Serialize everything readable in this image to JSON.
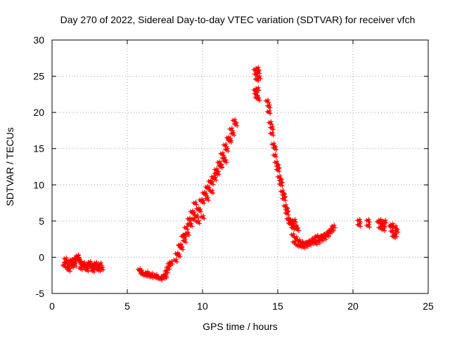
{
  "chart_data": {
    "type": "scatter",
    "title": "Day 270 of 2022, Sidereal Day-to-day VTEC variation (SDTVAR) for receiver vfch",
    "xlabel": "GPS time / hours",
    "ylabel": "SDTVAR / TECUs",
    "xlim": [
      0,
      25
    ],
    "ylim": [
      -5,
      30
    ],
    "xticks": [
      0,
      5,
      10,
      15,
      20,
      25
    ],
    "yticks": [
      -5,
      0,
      5,
      10,
      15,
      20,
      25,
      30
    ],
    "xtick_labels": [
      "0",
      "5",
      "10",
      "15",
      "20",
      "25"
    ],
    "ytick_labels": [
      "-5",
      "0",
      "5",
      "10",
      "15",
      "20",
      "25",
      "30"
    ],
    "grid": true,
    "marker": "+",
    "color": "#ff0000",
    "series": [
      {
        "name": "SDTVAR",
        "x": [
          0.8,
          0.9,
          1.0,
          1.1,
          1.2,
          1.3,
          1.4,
          1.5,
          1.6,
          1.7,
          1.8,
          1.9,
          2.0,
          2.1,
          2.2,
          2.3,
          2.4,
          2.5,
          2.6,
          2.7,
          2.8,
          2.9,
          3.0,
          3.1,
          3.2,
          3.3,
          0.9,
          1.1,
          1.3,
          1.5,
          1.7,
          1.9,
          2.1,
          2.3,
          2.5,
          2.7,
          2.9,
          3.1,
          5.8,
          5.9,
          6.0,
          6.2,
          6.4,
          6.6,
          6.8,
          7.0,
          7.2,
          7.4,
          7.5,
          7.6,
          7.7,
          7.8,
          7.9,
          6.0,
          6.3,
          6.6,
          6.9,
          7.2,
          7.5,
          8.2,
          8.4,
          8.6,
          8.8,
          9.0,
          9.2,
          9.4,
          9.6,
          9.8,
          10.0,
          10.2,
          10.4,
          10.6,
          10.8,
          11.0,
          11.2,
          11.4,
          11.6,
          11.8,
          12.0,
          12.2,
          8.3,
          8.5,
          8.7,
          8.9,
          9.1,
          9.3,
          9.5,
          9.7,
          9.9,
          10.1,
          10.3,
          10.5,
          10.7,
          10.9,
          11.1,
          11.3,
          11.5,
          11.7,
          11.9,
          12.1,
          8.5,
          8.8,
          9.1,
          9.4,
          9.7,
          10.0,
          10.3,
          10.6,
          10.9,
          11.2,
          11.5,
          11.8,
          13.5,
          13.55,
          13.6,
          13.65,
          13.7,
          13.75,
          13.5,
          13.55,
          13.6,
          13.65,
          13.7,
          14.3,
          14.4,
          14.5,
          14.6,
          14.7,
          14.8,
          14.9,
          15.0,
          15.1,
          15.2,
          15.3,
          15.4,
          15.5,
          15.6,
          15.7,
          15.8,
          15.9,
          16.0,
          16.1,
          16.2,
          16.3,
          14.4,
          14.6,
          14.8,
          15.0,
          15.2,
          15.4,
          15.6,
          15.8,
          16.0,
          16.0,
          16.2,
          16.4,
          16.6,
          16.8,
          17.0,
          17.2,
          17.4,
          17.6,
          17.8,
          18.0,
          18.2,
          18.4,
          18.6,
          18.7,
          16.1,
          16.3,
          16.5,
          16.7,
          16.9,
          17.1,
          17.3,
          17.5,
          17.7,
          17.9,
          18.1,
          18.3,
          18.5,
          20.4,
          20.4,
          21.0,
          21.0,
          21.7,
          21.8,
          21.9,
          22.0,
          22.1,
          21.8,
          22.0,
          22.0,
          22.5,
          22.6,
          22.7,
          22.8,
          22.9,
          22.6,
          22.8
        ],
        "y": [
          -1.2,
          -0.8,
          -1.5,
          -1.0,
          -0.6,
          -1.3,
          -0.9,
          -0.4,
          -0.2,
          0.0,
          -0.5,
          -0.8,
          -1.1,
          -1.3,
          -1.5,
          -1.2,
          -1.0,
          -0.8,
          -1.4,
          -1.6,
          -1.2,
          -1.5,
          -1.7,
          -1.3,
          -1.0,
          -1.6,
          -0.3,
          -1.8,
          -0.5,
          -1.1,
          0.1,
          -1.6,
          -0.9,
          -1.8,
          -1.0,
          -1.9,
          -0.9,
          -1.8,
          -1.8,
          -2.0,
          -2.3,
          -2.5,
          -2.6,
          -2.4,
          -2.7,
          -2.9,
          -3.0,
          -2.8,
          -2.5,
          -2.0,
          -1.5,
          -1.0,
          -0.8,
          -2.4,
          -2.2,
          -2.7,
          -2.6,
          -2.9,
          -2.7,
          -0.5,
          0.2,
          1.2,
          2.2,
          3.2,
          4.4,
          5.2,
          5.6,
          6.4,
          7.6,
          8.6,
          9.4,
          10.2,
          10.8,
          11.6,
          12.6,
          13.6,
          14.8,
          16.0,
          17.0,
          18.3,
          0.4,
          1.6,
          2.8,
          4.0,
          5.2,
          6.2,
          7.4,
          6.6,
          7.8,
          8.8,
          9.6,
          10.4,
          11.0,
          12.0,
          13.0,
          14.2,
          15.4,
          16.4,
          17.6,
          18.8,
          1.5,
          3.0,
          4.5,
          6.0,
          4.8,
          5.5,
          8.0,
          9.0,
          11.5,
          12.5,
          13.2,
          16.2,
          25.8,
          25.2,
          24.5,
          26.0,
          25.5,
          24.8,
          23.0,
          22.5,
          22.0,
          23.2,
          21.8,
          21.5,
          20.0,
          18.5,
          17.0,
          15.5,
          14.0,
          13.0,
          12.0,
          11.0,
          10.0,
          9.0,
          8.0,
          7.0,
          6.0,
          5.2,
          4.6,
          4.8,
          4.4,
          5.0,
          4.2,
          3.8,
          20.8,
          17.8,
          15.0,
          12.5,
          10.5,
          8.5,
          6.5,
          5.0,
          4.0,
          3.0,
          2.6,
          2.2,
          2.0,
          1.8,
          2.0,
          2.2,
          2.5,
          2.8,
          2.7,
          2.9,
          3.1,
          3.4,
          3.8,
          4.2,
          2.0,
          1.6,
          1.5,
          1.4,
          1.6,
          1.8,
          2.0,
          1.9,
          2.1,
          2.4,
          2.6,
          3.0,
          3.6,
          5.0,
          4.4,
          5.0,
          4.3,
          4.8,
          5.0,
          4.6,
          4.2,
          4.9,
          4.0,
          3.8,
          4.4,
          4.2,
          3.5,
          2.8,
          4.1,
          3.6,
          4.4,
          3.0
        ]
      }
    ]
  }
}
